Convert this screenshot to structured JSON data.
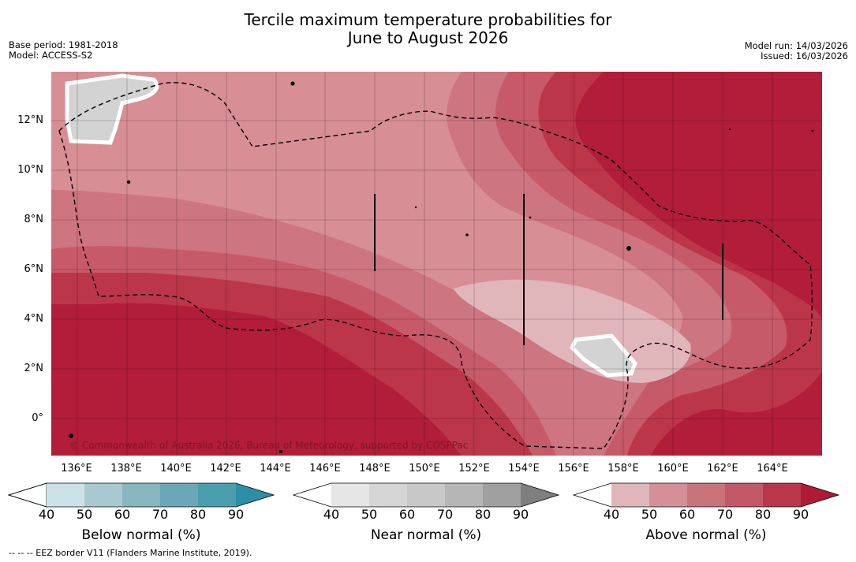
{
  "header": {
    "title_line1": "Tercile maximum temperature probabilities for",
    "title_line2": "June to August 2026",
    "base_period": "Base period: 1981-2018",
    "model": "Model: ACCESS-S2",
    "model_run": "Model run: 14/03/2026",
    "issued": "Issued: 16/03/2026"
  },
  "map": {
    "lat_labels": [
      "12°N",
      "10°N",
      "8°N",
      "6°N",
      "4°N",
      "2°N",
      "0°"
    ],
    "lon_labels": [
      "136°E",
      "138°E",
      "140°E",
      "142°E",
      "144°E",
      "146°E",
      "148°E",
      "150°E",
      "152°E",
      "154°E",
      "156°E",
      "158°E",
      "160°E",
      "162°E",
      "164°E"
    ],
    "copyright": "© Commonwealth of Australia 2026, Bureau of Meteorology, supported by COSPPac",
    "colors": {
      "above_90": "#b21d39",
      "above_80": "#bc3649",
      "above_70": "#c75a68",
      "above_60": "#cd7580",
      "above_50": "#d78e95",
      "above_40": "#e0b6bb",
      "near_50": "#d3d3d3",
      "land": "#000000"
    }
  },
  "legends": [
    {
      "label": "Below normal (%)",
      "ticks": [
        "40",
        "50",
        "60",
        "70",
        "80",
        "90"
      ],
      "colors": [
        "#ffffff",
        "#cbe2e8",
        "#a9c9d0",
        "#88b6c1",
        "#69a9b7",
        "#4a9ead",
        "#2b8fa6"
      ]
    },
    {
      "label": "Near normal (%)",
      "ticks": [
        "40",
        "50",
        "60",
        "70",
        "80",
        "90"
      ],
      "colors": [
        "#ffffff",
        "#e6e6e6",
        "#d5d5d5",
        "#c8c8c8",
        "#b6b6b6",
        "#a0a0a0",
        "#7f7f7f"
      ]
    },
    {
      "label": "Above normal (%)",
      "ticks": [
        "40",
        "50",
        "60",
        "70",
        "80",
        "90"
      ],
      "colors": [
        "#ffffff",
        "#e0b6bb",
        "#d49096",
        "#c87479",
        "#c25868",
        "#b9374b",
        "#b01a35"
      ]
    }
  ],
  "footnote": "--  --  -- EEZ border V11 (Flanders Marine Institute, 2019)."
}
